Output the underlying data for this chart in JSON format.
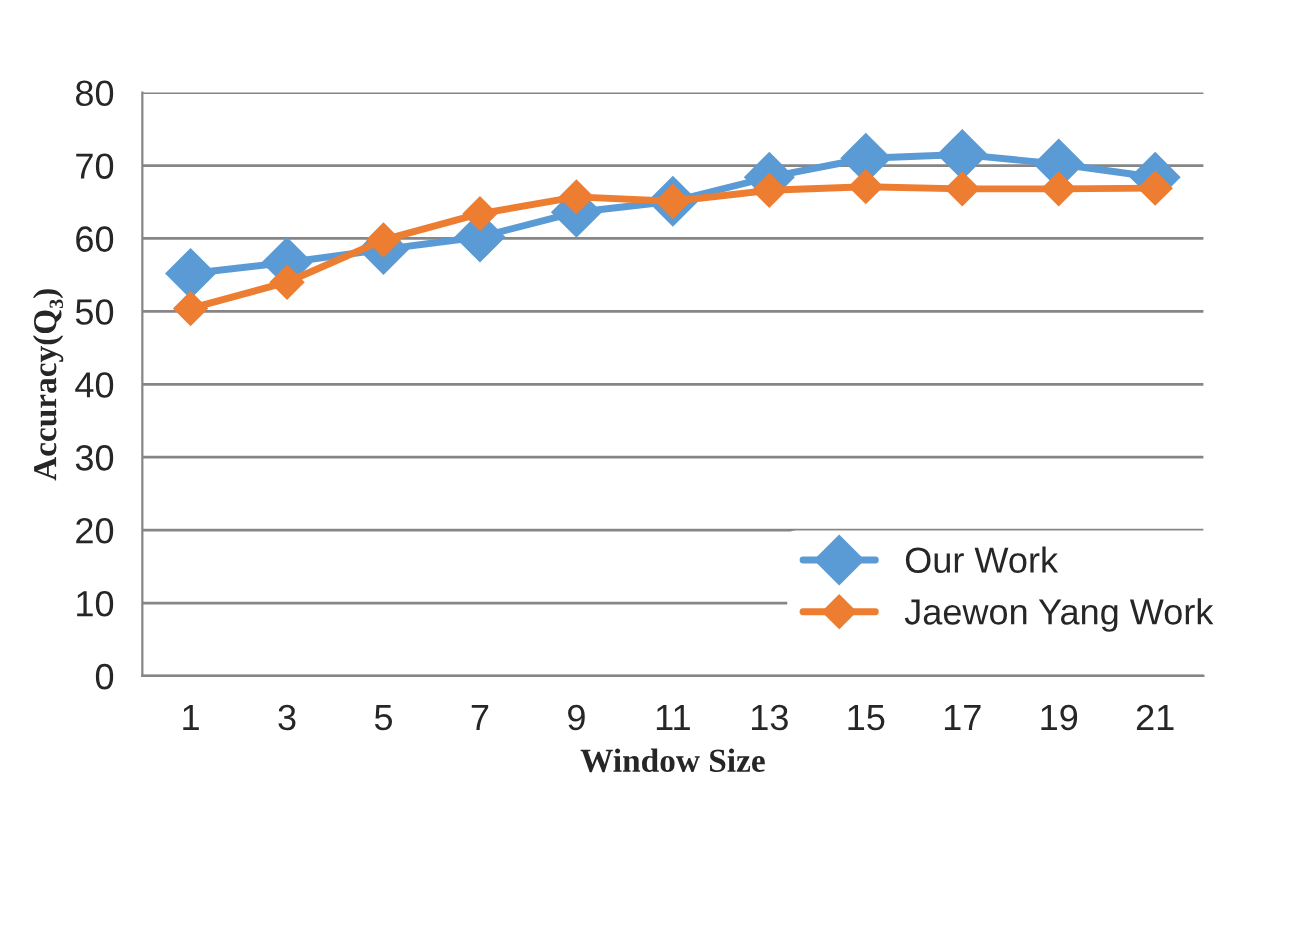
{
  "chart_data": {
    "type": "line",
    "xlabel": "Window Size",
    "ylabel": "Accuracy(Q₃)",
    "categories": [
      "1",
      "3",
      "5",
      "7",
      "9",
      "11",
      "13",
      "15",
      "17",
      "19",
      "21"
    ],
    "series": [
      {
        "name": "Our Work",
        "color": "#5b9bd5",
        "values": [
          55.2,
          56.7,
          58.5,
          60.2,
          63.6,
          65.1,
          68.4,
          71.0,
          71.5,
          70.2,
          68.4
        ]
      },
      {
        "name": "Jaewon Yang Work",
        "color": "#ed7d31",
        "values": [
          50.4,
          54.0,
          59.8,
          63.4,
          65.7,
          65.1,
          66.6,
          67.1,
          66.8,
          66.8,
          66.9
        ]
      }
    ],
    "ylim": [
      0,
      80
    ],
    "yticks": [
      0,
      10,
      20,
      30,
      40,
      50,
      60,
      70,
      80
    ],
    "grid": "y",
    "legend": "bottom right",
    "marker": "diamond",
    "line_style": "solid"
  }
}
